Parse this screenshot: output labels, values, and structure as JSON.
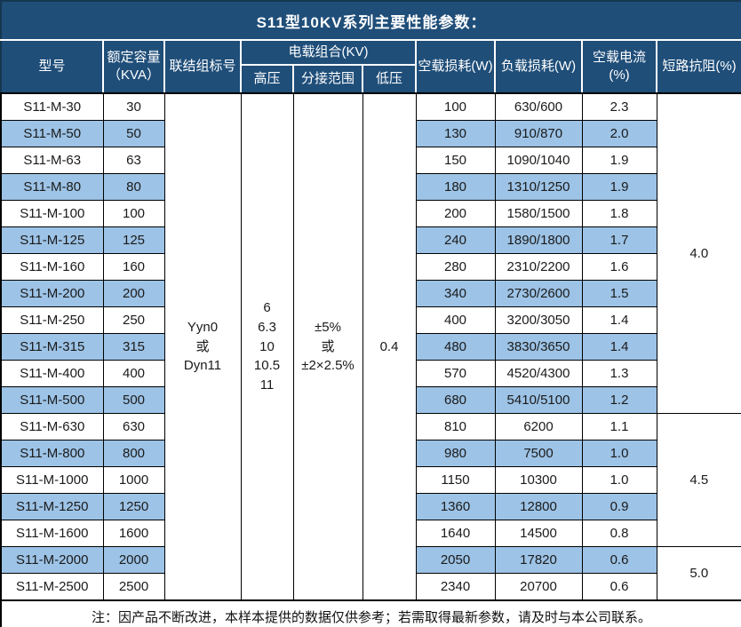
{
  "title": "S11型10KV系列主要性能参数：",
  "note": "注：因产品不断改进，本样本提供的数据仅供参考；若需取得最新参数，请及时与本公司联系。",
  "colors": {
    "header_bg": "#1F4E79",
    "header_text": "#FFFFFF",
    "alt_row_bg": "#9DC3E6",
    "row_bg": "#FFFFFF",
    "border": "#000000",
    "body_text": "#1A1A1A"
  },
  "columns": {
    "model": "型号",
    "capacity": "额定容量\n（KVA）",
    "connection": "联结组标号",
    "voltage_group": "电载组合(KV)",
    "high_voltage": "高压",
    "tap_range": "分接范围",
    "low_voltage": "低压",
    "no_load_loss": "空载损耗(W)",
    "load_loss": "负载损耗(W)",
    "no_load_current": "空载电流(%)",
    "impedance": "短路抗阻(%)"
  },
  "merged": {
    "connection": [
      "Yyn0",
      "或",
      "Dyn11"
    ],
    "high_voltage": [
      "6",
      "6.3",
      "10",
      "10.5",
      "11"
    ],
    "tap_range": [
      "±5%",
      "或",
      "±2×2.5%"
    ],
    "low_voltage": "0.4",
    "impedance_groups": [
      {
        "value": "4.0",
        "rows": 12
      },
      {
        "value": "4.5",
        "rows": 5
      },
      {
        "value": "5.0",
        "rows": 2
      }
    ]
  },
  "rows": [
    {
      "model": "S11-M-30",
      "capacity": "30",
      "no_load_loss": "100",
      "load_loss": "630/600",
      "no_load_current": "2.3"
    },
    {
      "model": "S11-M-50",
      "capacity": "50",
      "no_load_loss": "130",
      "load_loss": "910/870",
      "no_load_current": "2.0"
    },
    {
      "model": "S11-M-63",
      "capacity": "63",
      "no_load_loss": "150",
      "load_loss": "1090/1040",
      "no_load_current": "1.9"
    },
    {
      "model": "S11-M-80",
      "capacity": "80",
      "no_load_loss": "180",
      "load_loss": "1310/1250",
      "no_load_current": "1.9"
    },
    {
      "model": "S11-M-100",
      "capacity": "100",
      "no_load_loss": "200",
      "load_loss": "1580/1500",
      "no_load_current": "1.8"
    },
    {
      "model": "S11-M-125",
      "capacity": "125",
      "no_load_loss": "240",
      "load_loss": "1890/1800",
      "no_load_current": "1.7"
    },
    {
      "model": "S11-M-160",
      "capacity": "160",
      "no_load_loss": "280",
      "load_loss": "2310/2200",
      "no_load_current": "1.6"
    },
    {
      "model": "S11-M-200",
      "capacity": "200",
      "no_load_loss": "340",
      "load_loss": "2730/2600",
      "no_load_current": "1.5"
    },
    {
      "model": "S11-M-250",
      "capacity": "250",
      "no_load_loss": "400",
      "load_loss": "3200/3050",
      "no_load_current": "1.4"
    },
    {
      "model": "S11-M-315",
      "capacity": "315",
      "no_load_loss": "480",
      "load_loss": "3830/3650",
      "no_load_current": "1.4"
    },
    {
      "model": "S11-M-400",
      "capacity": "400",
      "no_load_loss": "570",
      "load_loss": "4520/4300",
      "no_load_current": "1.3"
    },
    {
      "model": "S11-M-500",
      "capacity": "500",
      "no_load_loss": "680",
      "load_loss": "5410/5100",
      "no_load_current": "1.2"
    },
    {
      "model": "S11-M-630",
      "capacity": "630",
      "no_load_loss": "810",
      "load_loss": "6200",
      "no_load_current": "1.1"
    },
    {
      "model": "S11-M-800",
      "capacity": "800",
      "no_load_loss": "980",
      "load_loss": "7500",
      "no_load_current": "1.0"
    },
    {
      "model": "S11-M-1000",
      "capacity": "1000",
      "no_load_loss": "1150",
      "load_loss": "10300",
      "no_load_current": "1.0"
    },
    {
      "model": "S11-M-1250",
      "capacity": "1250",
      "no_load_loss": "1360",
      "load_loss": "12800",
      "no_load_current": "0.9"
    },
    {
      "model": "S11-M-1600",
      "capacity": "1600",
      "no_load_loss": "1640",
      "load_loss": "14500",
      "no_load_current": "0.8"
    },
    {
      "model": "S11-M-2000",
      "capacity": "2000",
      "no_load_loss": "2050",
      "load_loss": "17820",
      "no_load_current": "0.6"
    },
    {
      "model": "S11-M-2500",
      "capacity": "2500",
      "no_load_loss": "2340",
      "load_loss": "20700",
      "no_load_current": "0.6"
    }
  ]
}
